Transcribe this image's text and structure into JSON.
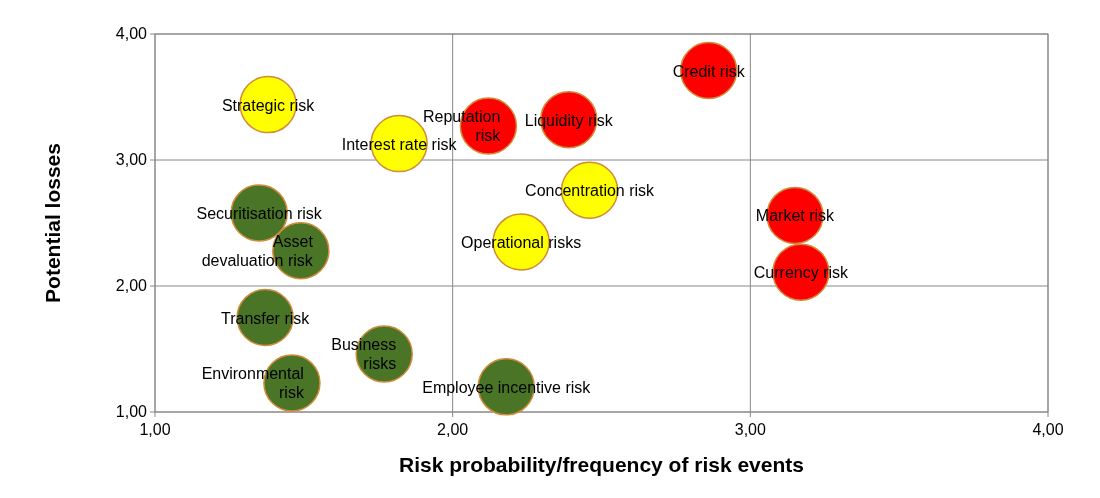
{
  "chart_data": {
    "type": "bubble",
    "xlabel": "Risk probability/frequency of risk events",
    "ylabel": "Potential losses",
    "x": [
      1.38,
      1.82,
      2.12,
      2.39,
      2.86,
      2.46,
      1.35,
      1.49,
      2.23,
      3.15,
      3.17,
      1.37,
      1.77,
      1.46,
      2.18
    ],
    "values": [
      3.44,
      3.13,
      3.27,
      3.32,
      3.71,
      2.76,
      2.58,
      2.28,
      2.35,
      2.56,
      2.11,
      1.75,
      1.46,
      1.23,
      1.2
    ],
    "sizes": [
      1,
      1,
      1,
      1,
      1,
      1,
      1,
      1,
      1,
      1,
      1,
      1,
      1,
      1,
      1
    ],
    "relative": false,
    "colors": [
      "#ffff00",
      "#ffff00",
      "#ff0000",
      "#ff0000",
      "#ff0000",
      "#ffff00",
      "#4a7526",
      "#4a7526",
      "#ffff00",
      "#ff0000",
      "#ff0000",
      "#4a7526",
      "#4a7526",
      "#4a7526",
      "#4a7526"
    ],
    "annotations": [
      {
        "text": "Strategic risk",
        "x": 1.38,
        "y": 3.44
      },
      {
        "text": "Interest rate risk",
        "x": 1.82,
        "y": 3.13
      },
      {
        "text": "Reputation\nrisk",
        "x": 2.12,
        "y": 3.27
      },
      {
        "text": "Liquidity risk",
        "x": 2.39,
        "y": 3.32
      },
      {
        "text": "Credit risk",
        "x": 2.86,
        "y": 3.71
      },
      {
        "text": "Concentration risk",
        "x": 2.46,
        "y": 2.76
      },
      {
        "text": "Securitisation risk",
        "x": 1.35,
        "y": 2.58
      },
      {
        "text": "Asset\ndevaluation risk",
        "x": 1.49,
        "y": 2.28
      },
      {
        "text": "Operational risks",
        "x": 2.23,
        "y": 2.35
      },
      {
        "text": "Market risk",
        "x": 3.15,
        "y": 2.56
      },
      {
        "text": "Currency risk",
        "x": 3.17,
        "y": 2.11
      },
      {
        "text": "Transfer risk",
        "x": 1.37,
        "y": 1.75
      },
      {
        "text": "Business\nrisks",
        "x": 1.77,
        "y": 1.46
      },
      {
        "text": "Environmental\nrisk",
        "x": 1.46,
        "y": 1.23
      },
      {
        "text": "Employee incentive risk",
        "x": 2.18,
        "y": 1.2
      }
    ],
    "xlim": [
      1,
      4
    ],
    "ylim": [
      1,
      4
    ],
    "xticks": [
      {
        "value": 1,
        "label": "1,00"
      },
      {
        "value": 2,
        "label": "2,00"
      },
      {
        "value": 3,
        "label": "3,00"
      },
      {
        "value": 4,
        "label": "4,00"
      }
    ],
    "yticks": [
      {
        "value": 1,
        "label": "1,00"
      },
      {
        "value": 2,
        "label": "2,00"
      },
      {
        "value": 3,
        "label": "3,00"
      },
      {
        "value": 4,
        "label": "4,00"
      }
    ],
    "grid": true
  }
}
